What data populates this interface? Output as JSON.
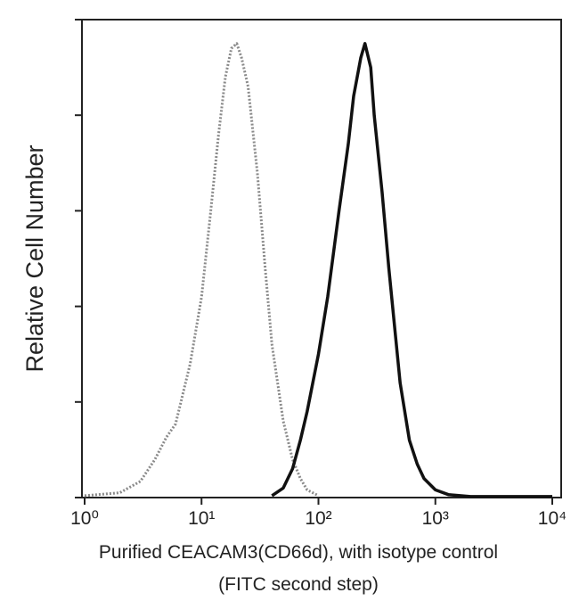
{
  "chart_data": {
    "type": "line",
    "y_label": "Relative Cell Number",
    "x_label": [
      "Purified CEACAM3(CD66d), with isotype control",
      "(FITC second step)"
    ],
    "log_x": true,
    "xlim": [
      1,
      10000
    ],
    "xticks": [
      {
        "value": 1,
        "label": "10⁰"
      },
      {
        "value": 10,
        "label": "10¹"
      },
      {
        "value": 100,
        "label": "10²"
      },
      {
        "value": 1000,
        "label": "10³"
      },
      {
        "value": 10000,
        "label": "10⁴"
      }
    ],
    "ylim": [
      0,
      5
    ],
    "yticks": [
      0,
      1,
      2,
      3,
      4,
      5
    ],
    "series": [
      {
        "color": "#8a8a8a",
        "dashed": true,
        "x": [
          1,
          2,
          3,
          4,
          5,
          6,
          8,
          10,
          12,
          14,
          16,
          18,
          20,
          22,
          25,
          30,
          35,
          40,
          50,
          60,
          70,
          80,
          100
        ],
        "values": [
          0.02,
          0.05,
          0.17,
          0.4,
          0.63,
          0.77,
          1.4,
          2.1,
          3.0,
          3.8,
          4.4,
          4.7,
          4.75,
          4.6,
          4.3,
          3.4,
          2.4,
          1.6,
          0.8,
          0.4,
          0.2,
          0.08,
          0.02
        ]
      },
      {
        "color": "#111111",
        "dashed": false,
        "x": [
          40,
          50,
          60,
          70,
          80,
          100,
          120,
          150,
          180,
          200,
          230,
          250,
          280,
          300,
          350,
          400,
          500,
          600,
          700,
          800,
          1000,
          1300,
          2000,
          5000,
          10000
        ],
        "values": [
          0.02,
          0.1,
          0.3,
          0.6,
          0.9,
          1.5,
          2.1,
          3.0,
          3.7,
          4.2,
          4.6,
          4.75,
          4.5,
          4.0,
          3.2,
          2.4,
          1.2,
          0.6,
          0.35,
          0.2,
          0.08,
          0.03,
          0.01,
          0.01,
          0.01
        ]
      }
    ]
  }
}
